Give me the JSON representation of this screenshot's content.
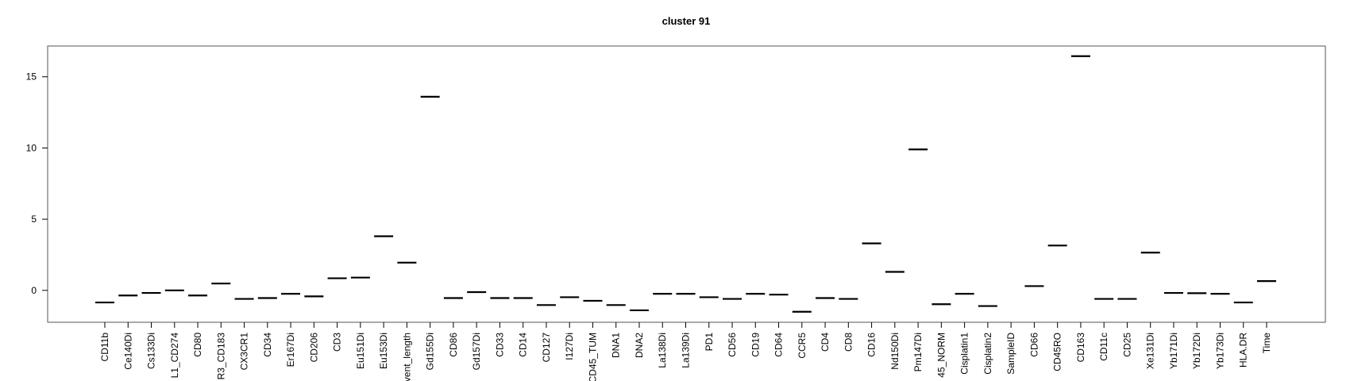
{
  "chart_data": {
    "type": "box",
    "title": "cluster 91",
    "categories": [
      "CD11b",
      "Ce140Di",
      "Cs133Di",
      "L1_CD274",
      "CD80",
      "R3_CD183",
      "CX3CR1",
      "CD34",
      "Er167Di",
      "CD206",
      "CD3",
      "Eu151Di",
      "Eu153Di",
      "vent_length",
      "Gd155Di",
      "CD86",
      "Gd157Di",
      "CD33",
      "CD14",
      "CD127",
      "I127Di",
      "CD45_TUM",
      "DNA1",
      "DNA2",
      "La138Di",
      "La139Di",
      "PD1",
      "CD56",
      "CD19",
      "CD64",
      "CCR5",
      "CD4",
      "CD8",
      "CD16",
      "Nd150Di",
      "Pm147Di",
      "45_NORM",
      "Cisplatin1",
      "Cisplatin2",
      "SampleID",
      "CD66",
      "CD45RO",
      "CD163",
      "CD11c",
      "CD25",
      "Xe131Di",
      "Yb171Di",
      "Yb172Di",
      "Yb173Di",
      "HLA.DR",
      "Time"
    ],
    "values": [
      -0.85,
      -0.36,
      -0.18,
      0,
      -0.36,
      0.48,
      -0.6,
      -0.54,
      -0.24,
      -0.42,
      0.85,
      0.9,
      3.8,
      1.95,
      13.6,
      -0.54,
      -0.12,
      -0.54,
      -0.54,
      -1.03,
      -0.48,
      -0.73,
      -1.03,
      -1.4,
      -0.24,
      -0.24,
      -0.48,
      -0.6,
      -0.24,
      -0.3,
      -1.5,
      -0.54,
      -0.6,
      3.3,
      1.3,
      9.9,
      -0.97,
      -0.24,
      -1.1,
      null,
      0.3,
      3.15,
      16.45,
      -0.6,
      -0.6,
      2.65,
      -0.18,
      -0.2,
      -0.24,
      -0.85,
      0.65
    ],
    "color": "#000000",
    "ylim": [
      -2.24,
      17.16
    ],
    "yticks": [
      0,
      5,
      10,
      15
    ]
  }
}
